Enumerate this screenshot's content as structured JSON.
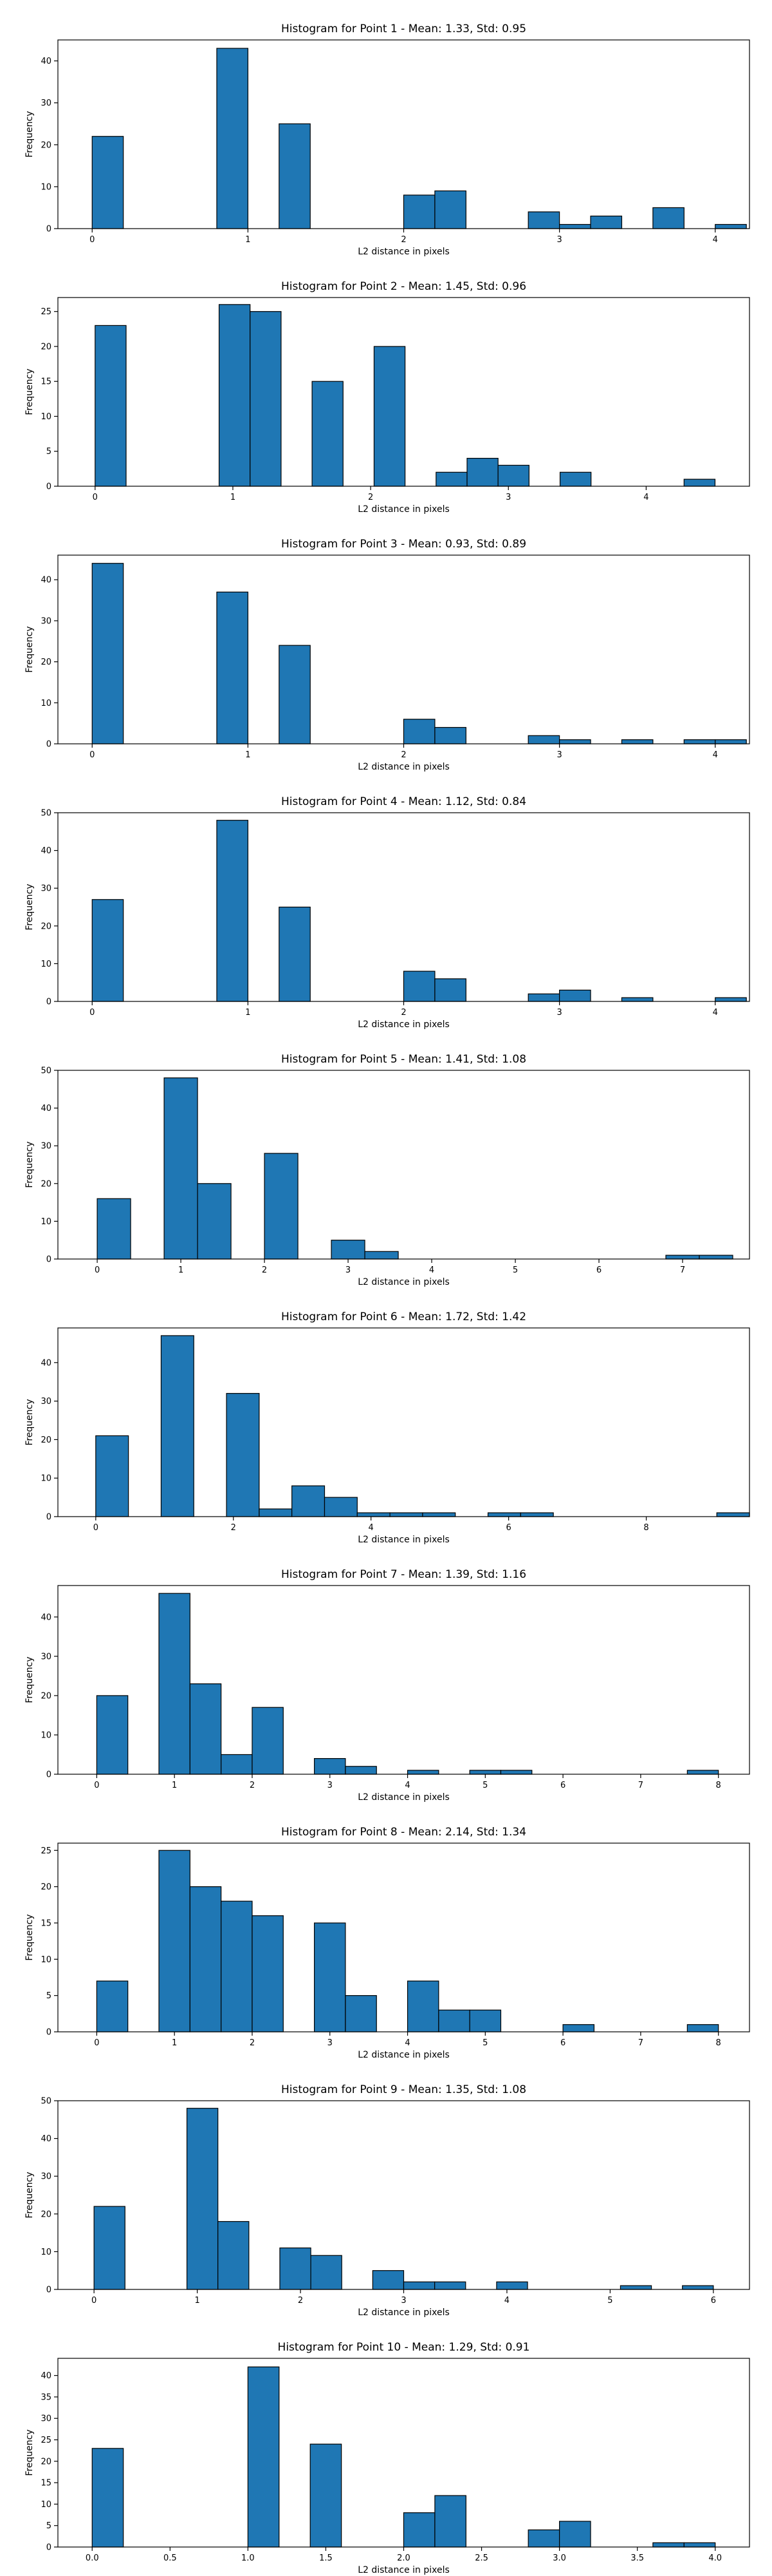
{
  "chart_data": [
    {
      "type": "bar",
      "title": "Histogram for Point 1 - Mean: 1.33, Std: 0.95",
      "xlabel": "L2 distance in pixels",
      "ylabel": "Frequency",
      "xlim": [
        -0.22,
        4.22
      ],
      "ylim": [
        0,
        45
      ],
      "xticks": [
        0,
        1,
        2,
        3,
        4
      ],
      "xtick_labels": [
        "0",
        "1",
        "2",
        "3",
        "4"
      ],
      "yticks": [
        0,
        10,
        20,
        30,
        40
      ],
      "bin_edges": [
        0,
        0.2,
        0.4,
        0.6,
        0.8,
        1.0,
        1.2,
        1.4,
        1.6,
        1.8,
        2.0,
        2.2,
        2.4,
        2.6,
        2.8,
        3.0,
        3.2,
        3.4,
        3.6,
        3.8,
        4.0,
        4.2
      ],
      "counts": [
        22,
        0,
        0,
        0,
        43,
        0,
        25,
        0,
        0,
        0,
        8,
        9,
        0,
        0,
        4,
        1,
        3,
        0,
        5,
        0,
        1
      ]
    },
    {
      "type": "bar",
      "title": "Histogram for Point 2 - Mean: 1.45, Std: 0.96",
      "xlabel": "L2 distance in pixels",
      "ylabel": "Frequency",
      "xlim": [
        -0.27,
        4.75
      ],
      "ylim": [
        0,
        27
      ],
      "xticks": [
        0,
        1,
        2,
        3,
        4
      ],
      "xtick_labels": [
        "0",
        "1",
        "2",
        "3",
        "4"
      ],
      "yticks": [
        0,
        5,
        10,
        15,
        20,
        25
      ],
      "bin_edges": [
        0,
        0.225,
        0.45,
        0.675,
        0.9,
        1.125,
        1.35,
        1.575,
        1.8,
        2.025,
        2.25,
        2.475,
        2.7,
        2.925,
        3.15,
        3.375,
        3.6,
        3.825,
        4.05,
        4.275,
        4.5
      ],
      "counts": [
        23,
        0,
        0,
        0,
        26,
        25,
        0,
        15,
        0,
        20,
        0,
        2,
        4,
        3,
        0,
        2,
        0,
        0,
        0,
        1
      ]
    },
    {
      "type": "bar",
      "title": "Histogram for Point 3 - Mean: 0.93, Std: 0.89",
      "xlabel": "L2 distance in pixels",
      "ylabel": "Frequency",
      "xlim": [
        -0.22,
        4.22
      ],
      "ylim": [
        0,
        46
      ],
      "xticks": [
        0,
        1,
        2,
        3,
        4
      ],
      "xtick_labels": [
        "0",
        "1",
        "2",
        "3",
        "4"
      ],
      "yticks": [
        0,
        10,
        20,
        30,
        40
      ],
      "bin_edges": [
        0,
        0.2,
        0.4,
        0.6,
        0.8,
        1.0,
        1.2,
        1.4,
        1.6,
        1.8,
        2.0,
        2.2,
        2.4,
        2.6,
        2.8,
        3.0,
        3.2,
        3.4,
        3.6,
        3.8,
        4.0,
        4.2
      ],
      "counts": [
        44,
        0,
        0,
        0,
        37,
        0,
        24,
        0,
        0,
        0,
        6,
        4,
        0,
        0,
        2,
        1,
        0,
        1,
        0,
        1,
        1
      ]
    },
    {
      "type": "bar",
      "title": "Histogram for Point 4 - Mean: 1.12, Std: 0.84",
      "xlabel": "L2 distance in pixels",
      "ylabel": "Frequency",
      "xlim": [
        -0.22,
        4.22
      ],
      "ylim": [
        0,
        50
      ],
      "xticks": [
        0,
        1,
        2,
        3,
        4
      ],
      "xtick_labels": [
        "0",
        "1",
        "2",
        "3",
        "4"
      ],
      "yticks": [
        0,
        10,
        20,
        30,
        40,
        50
      ],
      "bin_edges": [
        0,
        0.2,
        0.4,
        0.6,
        0.8,
        1.0,
        1.2,
        1.4,
        1.6,
        1.8,
        2.0,
        2.2,
        2.4,
        2.6,
        2.8,
        3.0,
        3.2,
        3.4,
        3.6,
        3.8,
        4.0,
        4.2
      ],
      "counts": [
        27,
        0,
        0,
        0,
        48,
        0,
        25,
        0,
        0,
        0,
        8,
        6,
        0,
        0,
        2,
        3,
        0,
        1,
        0,
        0,
        1
      ]
    },
    {
      "type": "bar",
      "title": "Histogram for Point 5 - Mean: 1.41, Std: 1.08",
      "xlabel": "L2 distance in pixels",
      "ylabel": "Frequency",
      "xlim": [
        -0.47,
        7.8
      ],
      "ylim": [
        0,
        50
      ],
      "xticks": [
        0,
        1,
        2,
        3,
        4,
        5,
        6,
        7
      ],
      "xtick_labels": [
        "0",
        "1",
        "2",
        "3",
        "4",
        "5",
        "6",
        "7"
      ],
      "yticks": [
        0,
        10,
        20,
        30,
        40,
        50
      ],
      "bin_edges": [
        0,
        0.4,
        0.8,
        1.2,
        1.6,
        2.0,
        2.4,
        2.8,
        3.2,
        3.6,
        4.0,
        4.4,
        4.8,
        5.2,
        5.6,
        6.0,
        6.4,
        6.8,
        7.2,
        7.6
      ],
      "counts": [
        16,
        0,
        48,
        20,
        0,
        28,
        0,
        5,
        2,
        0,
        0,
        0,
        0,
        0,
        0,
        0,
        0,
        1,
        1
      ]
    },
    {
      "type": "bar",
      "title": "Histogram for Point 6 - Mean: 1.72, Std: 1.42",
      "xlabel": "L2 distance in pixels",
      "ylabel": "Frequency",
      "xlim": [
        -0.55,
        9.5
      ],
      "ylim": [
        0,
        49
      ],
      "xticks": [
        0,
        2,
        4,
        6,
        8
      ],
      "xtick_labels": [
        "0",
        "2",
        "4",
        "6",
        "8"
      ],
      "yticks": [
        0,
        10,
        20,
        30,
        40
      ],
      "bin_edges": [
        0,
        0.475,
        0.95,
        1.425,
        1.9,
        2.375,
        2.85,
        3.325,
        3.8,
        4.275,
        4.75,
        5.225,
        5.7,
        6.175,
        6.65,
        7.125,
        7.6,
        8.075,
        8.55,
        9.025,
        9.5
      ],
      "counts": [
        21,
        0,
        47,
        0,
        32,
        2,
        8,
        5,
        1,
        1,
        1,
        0,
        1,
        1,
        0,
        0,
        0,
        0,
        0,
        1
      ]
    },
    {
      "type": "bar",
      "title": "Histogram for Point 7 - Mean: 1.39, Std: 1.16",
      "xlabel": "L2 distance in pixels",
      "ylabel": "Frequency",
      "xlim": [
        -0.5,
        8.4
      ],
      "ylim": [
        0,
        48
      ],
      "xticks": [
        0,
        1,
        2,
        3,
        4,
        5,
        6,
        7,
        8
      ],
      "xtick_labels": [
        "0",
        "1",
        "2",
        "3",
        "4",
        "5",
        "6",
        "7",
        "8"
      ],
      "yticks": [
        0,
        10,
        20,
        30,
        40
      ],
      "bin_edges": [
        0,
        0.4,
        0.8,
        1.2,
        1.6,
        2.0,
        2.4,
        2.8,
        3.2,
        3.6,
        4.0,
        4.4,
        4.8,
        5.2,
        5.6,
        6.0,
        6.4,
        6.8,
        7.2,
        7.6,
        8.0
      ],
      "counts": [
        20,
        0,
        46,
        23,
        5,
        17,
        0,
        4,
        2,
        0,
        1,
        0,
        1,
        1,
        0,
        0,
        0,
        0,
        0,
        1
      ]
    },
    {
      "type": "bar",
      "title": "Histogram for Point 8 - Mean: 2.14, Std: 1.34",
      "xlabel": "L2 distance in pixels",
      "ylabel": "Frequency",
      "xlim": [
        -0.5,
        8.4
      ],
      "ylim": [
        0,
        26
      ],
      "xticks": [
        0,
        1,
        2,
        3,
        4,
        5,
        6,
        7,
        8
      ],
      "xtick_labels": [
        "0",
        "1",
        "2",
        "3",
        "4",
        "5",
        "6",
        "7",
        "8"
      ],
      "yticks": [
        0,
        5,
        10,
        15,
        20,
        25
      ],
      "bin_edges": [
        0,
        0.4,
        0.8,
        1.2,
        1.6,
        2.0,
        2.4,
        2.8,
        3.2,
        3.6,
        4.0,
        4.4,
        4.8,
        5.2,
        5.6,
        6.0,
        6.4,
        6.8,
        7.2,
        7.6,
        8.0
      ],
      "counts": [
        7,
        0,
        25,
        20,
        18,
        16,
        0,
        15,
        5,
        0,
        7,
        3,
        3,
        0,
        0,
        1,
        0,
        0,
        0,
        1
      ]
    },
    {
      "type": "bar",
      "title": "Histogram for Point 9 - Mean: 1.35, Std: 1.08",
      "xlabel": "L2 distance in pixels",
      "ylabel": "Frequency",
      "xlim": [
        -0.35,
        6.35
      ],
      "ylim": [
        0,
        50
      ],
      "xticks": [
        0,
        1,
        2,
        3,
        4,
        5,
        6
      ],
      "xtick_labels": [
        "0",
        "1",
        "2",
        "3",
        "4",
        "5",
        "6"
      ],
      "yticks": [
        0,
        10,
        20,
        30,
        40,
        50
      ],
      "bin_edges": [
        0,
        0.3,
        0.6,
        0.9,
        1.2,
        1.5,
        1.8,
        2.1,
        2.4,
        2.7,
        3.0,
        3.3,
        3.6,
        3.9,
        4.2,
        4.5,
        4.8,
        5.1,
        5.4,
        5.7,
        6.0
      ],
      "counts": [
        22,
        0,
        0,
        48,
        18,
        0,
        11,
        9,
        0,
        5,
        2,
        2,
        0,
        2,
        0,
        0,
        0,
        1,
        0,
        1
      ]
    },
    {
      "type": "bar",
      "title": "Histogram for Point 10 - Mean: 1.29, Std: 0.91",
      "xlabel": "L2 distance in pixels",
      "ylabel": "Frequency",
      "xlim": [
        -0.22,
        4.22
      ],
      "ylim": [
        0,
        44
      ],
      "xticks": [
        0,
        0.5,
        1,
        1.5,
        2,
        2.5,
        3,
        3.5,
        4
      ],
      "xtick_labels": [
        "0.0",
        "0.5",
        "1.0",
        "1.5",
        "2.0",
        "2.5",
        "3.0",
        "3.5",
        "4.0"
      ],
      "yticks": [
        0,
        5,
        10,
        15,
        20,
        25,
        30,
        35,
        40
      ],
      "bin_edges": [
        0,
        0.2,
        0.4,
        0.6,
        0.8,
        1.0,
        1.2,
        1.4,
        1.6,
        1.8,
        2.0,
        2.2,
        2.4,
        2.6,
        2.8,
        3.0,
        3.2,
        3.4,
        3.6,
        3.8,
        4.0
      ],
      "counts": [
        23,
        0,
        0,
        0,
        0,
        42,
        0,
        24,
        0,
        0,
        8,
        12,
        0,
        0,
        4,
        6,
        0,
        0,
        1,
        1
      ]
    }
  ]
}
